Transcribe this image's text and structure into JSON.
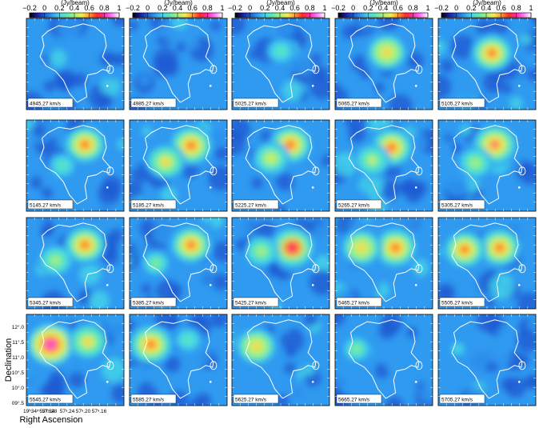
{
  "figure": {
    "colorbar": {
      "unit": "(Jy/beam)",
      "ticks": [
        "−0.2",
        "0",
        "0.2",
        "0.4",
        "0.6",
        "0.8",
        "1"
      ],
      "colormap": [
        "#000000",
        "#1a1aa0",
        "#1e5ad2",
        "#2f9af0",
        "#44d6e8",
        "#5ce8b0",
        "#a8f07a",
        "#f0ee50",
        "#ff9a30",
        "#ff2a2a",
        "#ff2aa8",
        "#ff7aff",
        "#ffffff"
      ]
    },
    "panels": [
      {
        "velocity": "4945.27 km/s",
        "blobs": []
      },
      {
        "velocity": "4985.27 km/s",
        "blobs": []
      },
      {
        "velocity": "5025.27 km/s",
        "blobs": [
          {
            "x": 0.5,
            "y": 0.36,
            "peak": 0.3
          }
        ]
      },
      {
        "velocity": "5065.27 km/s",
        "blobs": [
          {
            "x": 0.53,
            "y": 0.37,
            "peak": 0.6
          }
        ]
      },
      {
        "velocity": "5105.27 km/s",
        "blobs": [
          {
            "x": 0.55,
            "y": 0.38,
            "peak": 0.65
          }
        ]
      },
      {
        "velocity": "5145.27 km/s",
        "blobs": [
          {
            "x": 0.6,
            "y": 0.27,
            "peak": 0.65
          },
          {
            "x": 0.37,
            "y": 0.5,
            "peak": 0.3
          }
        ]
      },
      {
        "velocity": "5185.27 km/s",
        "blobs": [
          {
            "x": 0.63,
            "y": 0.28,
            "peak": 0.72
          },
          {
            "x": 0.37,
            "y": 0.46,
            "peak": 0.55
          }
        ]
      },
      {
        "velocity": "5225.27 km/s",
        "blobs": [
          {
            "x": 0.6,
            "y": 0.27,
            "peak": 0.7
          },
          {
            "x": 0.4,
            "y": 0.42,
            "peak": 0.5
          }
        ]
      },
      {
        "velocity": "5265.27 km/s",
        "blobs": [
          {
            "x": 0.58,
            "y": 0.3,
            "peak": 0.68
          },
          {
            "x": 0.38,
            "y": 0.44,
            "peak": 0.45
          }
        ]
      },
      {
        "velocity": "5305.27 km/s",
        "blobs": [
          {
            "x": 0.58,
            "y": 0.27,
            "peak": 0.75
          },
          {
            "x": 0.38,
            "y": 0.47,
            "peak": 0.4
          }
        ]
      },
      {
        "velocity": "5345.27 km/s",
        "blobs": [
          {
            "x": 0.6,
            "y": 0.3,
            "peak": 0.65
          },
          {
            "x": 0.3,
            "y": 0.47,
            "peak": 0.4
          }
        ]
      },
      {
        "velocity": "5385.27 km/s",
        "blobs": [
          {
            "x": 0.63,
            "y": 0.3,
            "peak": 0.65
          },
          {
            "x": 0.27,
            "y": 0.5,
            "peak": 0.35
          }
        ]
      },
      {
        "velocity": "5425.27 km/s",
        "blobs": [
          {
            "x": 0.62,
            "y": 0.33,
            "peak": 0.78
          },
          {
            "x": 0.3,
            "y": 0.37,
            "peak": 0.4
          }
        ]
      },
      {
        "velocity": "5465.27 km/s",
        "blobs": [
          {
            "x": 0.62,
            "y": 0.33,
            "peak": 0.72
          },
          {
            "x": 0.27,
            "y": 0.33,
            "peak": 0.6
          }
        ]
      },
      {
        "velocity": "5505.27 km/s",
        "blobs": [
          {
            "x": 0.63,
            "y": 0.33,
            "peak": 0.68
          },
          {
            "x": 0.27,
            "y": 0.35,
            "peak": 0.65
          }
        ]
      },
      {
        "velocity": "5545.27 km/s",
        "blobs": [
          {
            "x": 0.25,
            "y": 0.33,
            "peak": 0.9
          },
          {
            "x": 0.63,
            "y": 0.3,
            "peak": 0.55
          }
        ]
      },
      {
        "velocity": "5585.27 km/s",
        "blobs": [
          {
            "x": 0.22,
            "y": 0.33,
            "peak": 0.72
          },
          {
            "x": 0.6,
            "y": 0.28,
            "peak": 0.3
          }
        ]
      },
      {
        "velocity": "5625.27 km/s",
        "blobs": [
          {
            "x": 0.25,
            "y": 0.35,
            "peak": 0.62
          }
        ]
      },
      {
        "velocity": "5665.27 km/s",
        "blobs": [
          {
            "x": 0.22,
            "y": 0.38,
            "peak": 0.35
          }
        ]
      },
      {
        "velocity": "5705.27 km/s",
        "blobs": [
          {
            "x": 0.2,
            "y": 0.38,
            "peak": 0.18
          }
        ]
      }
    ],
    "y_axis": {
      "title": "Declination",
      "ticks": [
        "12°.0",
        "11°.5",
        "11°.0",
        "10°.5",
        "10°.0",
        "09°.5"
      ]
    },
    "x_axis": {
      "title": "Right Ascension",
      "ticks": [
        "19ʰ34ᵐ57ˢ.34",
        "57ˢ.28",
        "57ˢ.24",
        "57ˢ.20",
        "57ˢ.16"
      ]
    }
  }
}
